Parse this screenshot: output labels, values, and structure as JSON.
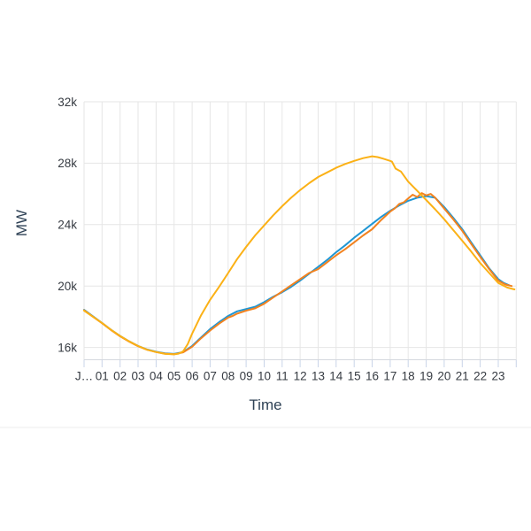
{
  "page": {
    "background": "#ffffff"
  },
  "chart_data": {
    "type": "line",
    "title": "",
    "xlabel": "Time",
    "ylabel": "MW",
    "grid": true,
    "legend": "none",
    "x_range_hours": [
      0,
      24
    ],
    "y_range_displayed": [
      15200,
      32000
    ],
    "x_tick_labels": [
      "J…",
      "01",
      "02",
      "03",
      "04",
      "05",
      "06",
      "07",
      "08",
      "09",
      "10",
      "11",
      "12",
      "13",
      "14",
      "15",
      "16",
      "17",
      "18",
      "19",
      "20",
      "21",
      "22",
      "23"
    ],
    "y_ticks": [
      {
        "label": "16k",
        "value": 16000
      },
      {
        "label": "20k",
        "value": 20000
      },
      {
        "label": "24k",
        "value": 24000
      },
      {
        "label": "28k",
        "value": 28000
      },
      {
        "label": "32k",
        "value": 32000
      }
    ],
    "colors": {
      "gridline": "#e6e6e6",
      "axis_line": "#d5d9de",
      "axis_tick": "#c9d4e8",
      "tick_text": "#363b42",
      "title_text": "#2f4256",
      "footer_divider": "#ededed"
    },
    "series": [
      {
        "name": "blue-curve",
        "color": "#2096D3",
        "points": [
          [
            0,
            18450
          ],
          [
            0.5,
            18020
          ],
          [
            1,
            17600
          ],
          [
            1.5,
            17150
          ],
          [
            2,
            16750
          ],
          [
            2.5,
            16400
          ],
          [
            3,
            16100
          ],
          [
            3.5,
            15870
          ],
          [
            4,
            15720
          ],
          [
            4.5,
            15620
          ],
          [
            5,
            15580
          ],
          [
            5.5,
            15700
          ],
          [
            6,
            16100
          ],
          [
            6.5,
            16650
          ],
          [
            7,
            17200
          ],
          [
            7.5,
            17650
          ],
          [
            8,
            18050
          ],
          [
            8.5,
            18350
          ],
          [
            9,
            18500
          ],
          [
            9.5,
            18650
          ],
          [
            10,
            18950
          ],
          [
            10.5,
            19300
          ],
          [
            11,
            19600
          ],
          [
            11.5,
            19950
          ],
          [
            12,
            20350
          ],
          [
            12.5,
            20800
          ],
          [
            13,
            21250
          ],
          [
            13.5,
            21700
          ],
          [
            14,
            22200
          ],
          [
            14.5,
            22650
          ],
          [
            15,
            23150
          ],
          [
            15.5,
            23600
          ],
          [
            16,
            24050
          ],
          [
            16.5,
            24500
          ],
          [
            17,
            24900
          ],
          [
            17.5,
            25250
          ],
          [
            18,
            25550
          ],
          [
            18.5,
            25750
          ],
          [
            19,
            25850
          ],
          [
            19.5,
            25750
          ],
          [
            20,
            25150
          ],
          [
            20.5,
            24450
          ],
          [
            21,
            23700
          ],
          [
            21.5,
            22850
          ],
          [
            22,
            22000
          ],
          [
            22.5,
            21150
          ],
          [
            23,
            20450
          ],
          [
            23.3,
            20200
          ],
          [
            23.6,
            20050
          ]
        ]
      },
      {
        "name": "orange-curve",
        "color": "#F2821F",
        "points": [
          [
            0,
            18430
          ],
          [
            0.5,
            18000
          ],
          [
            1,
            17580
          ],
          [
            1.5,
            17130
          ],
          [
            2,
            16730
          ],
          [
            2.5,
            16380
          ],
          [
            3,
            16080
          ],
          [
            3.5,
            15850
          ],
          [
            4,
            15700
          ],
          [
            4.5,
            15600
          ],
          [
            5,
            15560
          ],
          [
            5.5,
            15680
          ],
          [
            6,
            16050
          ],
          [
            6.5,
            16600
          ],
          [
            7,
            17100
          ],
          [
            7.5,
            17550
          ],
          [
            8,
            17950
          ],
          [
            8.25,
            18050
          ],
          [
            8.5,
            18200
          ],
          [
            9,
            18400
          ],
          [
            9.5,
            18550
          ],
          [
            10,
            18850
          ],
          [
            10.5,
            19250
          ],
          [
            11,
            19650
          ],
          [
            11.5,
            20050
          ],
          [
            12,
            20450
          ],
          [
            12.5,
            20850
          ],
          [
            13,
            21100
          ],
          [
            13.5,
            21550
          ],
          [
            14,
            22000
          ],
          [
            14.5,
            22400
          ],
          [
            15,
            22850
          ],
          [
            15.5,
            23300
          ],
          [
            16,
            23700
          ],
          [
            16.5,
            24300
          ],
          [
            17,
            24850
          ],
          [
            17.25,
            25050
          ],
          [
            17.5,
            25350
          ],
          [
            17.75,
            25450
          ],
          [
            18,
            25700
          ],
          [
            18.25,
            25950
          ],
          [
            18.5,
            25800
          ],
          [
            18.75,
            26050
          ],
          [
            19,
            25900
          ],
          [
            19.25,
            26000
          ],
          [
            19.5,
            25750
          ],
          [
            20,
            25050
          ],
          [
            20.5,
            24350
          ],
          [
            21,
            23600
          ],
          [
            21.5,
            22750
          ],
          [
            22,
            21900
          ],
          [
            22.5,
            21100
          ],
          [
            23,
            20350
          ],
          [
            23.4,
            20100
          ],
          [
            23.75,
            20000
          ]
        ]
      },
      {
        "name": "yellow-curve",
        "color": "#FBB116",
        "points": [
          [
            0,
            18400
          ],
          [
            0.5,
            17990
          ],
          [
            1,
            17600
          ],
          [
            1.5,
            17150
          ],
          [
            2,
            16750
          ],
          [
            2.5,
            16400
          ],
          [
            3,
            16100
          ],
          [
            3.5,
            15850
          ],
          [
            4,
            15700
          ],
          [
            4.5,
            15580
          ],
          [
            5,
            15550
          ],
          [
            5.25,
            15600
          ],
          [
            5.5,
            15750
          ],
          [
            5.75,
            16200
          ],
          [
            6,
            16900
          ],
          [
            6.5,
            18100
          ],
          [
            7,
            19100
          ],
          [
            7.5,
            19950
          ],
          [
            8,
            20850
          ],
          [
            8.5,
            21750
          ],
          [
            9,
            22550
          ],
          [
            9.5,
            23300
          ],
          [
            10,
            23950
          ],
          [
            10.5,
            24600
          ],
          [
            11,
            25200
          ],
          [
            11.5,
            25750
          ],
          [
            12,
            26250
          ],
          [
            12.5,
            26700
          ],
          [
            13,
            27100
          ],
          [
            13.5,
            27400
          ],
          [
            14,
            27700
          ],
          [
            14.5,
            27950
          ],
          [
            15,
            28150
          ],
          [
            15.5,
            28330
          ],
          [
            16,
            28450
          ],
          [
            16.3,
            28400
          ],
          [
            16.6,
            28300
          ],
          [
            17,
            28150
          ],
          [
            17.1,
            28100
          ],
          [
            17.3,
            27650
          ],
          [
            17.6,
            27450
          ],
          [
            18,
            26800
          ],
          [
            18.5,
            26200
          ],
          [
            19,
            25600
          ],
          [
            19.5,
            25000
          ],
          [
            20,
            24350
          ],
          [
            20.5,
            23650
          ],
          [
            21,
            22950
          ],
          [
            21.5,
            22250
          ],
          [
            22,
            21500
          ],
          [
            22.5,
            20850
          ],
          [
            23,
            20200
          ],
          [
            23.5,
            19900
          ],
          [
            23.9,
            19780
          ]
        ]
      }
    ]
  }
}
